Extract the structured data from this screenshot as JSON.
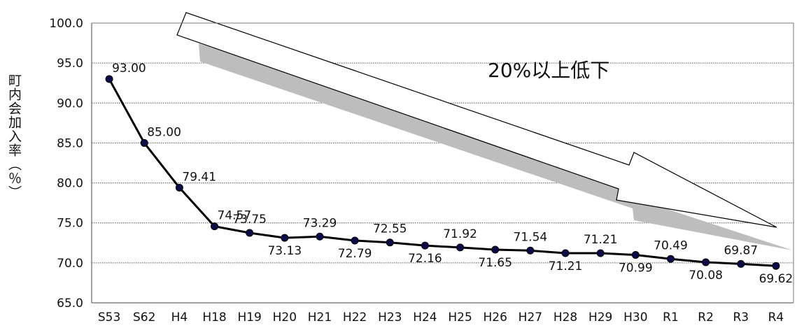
{
  "chart_data": {
    "type": "line",
    "title": "",
    "xlabel": "",
    "ylabel": "町内会加入率（％）",
    "categories": [
      "S53",
      "S62",
      "H4",
      "H18",
      "H19",
      "H20",
      "H21",
      "H22",
      "H23",
      "H24",
      "H25",
      "H26",
      "H27",
      "H28",
      "H29",
      "H30",
      "R1",
      "R2",
      "R3",
      "R4"
    ],
    "series": [
      {
        "values": [
          93.0,
          85.0,
          79.41,
          74.57,
          73.75,
          73.13,
          73.29,
          72.79,
          72.55,
          72.16,
          71.92,
          71.65,
          71.54,
          71.21,
          71.21,
          70.99,
          70.49,
          70.08,
          69.87,
          69.62
        ]
      }
    ],
    "data_labels": [
      "93.00",
      "85.00",
      "79.41",
      "74.57",
      "73.75",
      "73.13",
      "73.29",
      "72.79",
      "72.55",
      "72.16",
      "71.92",
      "71.65",
      "71.54",
      "71.21",
      "71.21",
      "70.99",
      "70.49",
      "70.08",
      "69.87",
      "69.62"
    ],
    "label_position": [
      "right",
      "right",
      "right",
      "right",
      "above",
      "below",
      "above",
      "below",
      "above",
      "below",
      "above",
      "below",
      "above",
      "below",
      "above",
      "below",
      "above",
      "below",
      "above",
      "below"
    ],
    "ylim": [
      65.0,
      100.0
    ],
    "yticks": [
      "65.0",
      "70.0",
      "75.0",
      "80.0",
      "85.0",
      "90.0",
      "95.0",
      "100.0"
    ],
    "grid": true,
    "annotation": "20%以上低下",
    "colors": {
      "line": "#000000",
      "marker_fill": "#0b0b4a",
      "grid": "#555555",
      "arrow_shadow": "#bdbdbd"
    }
  }
}
